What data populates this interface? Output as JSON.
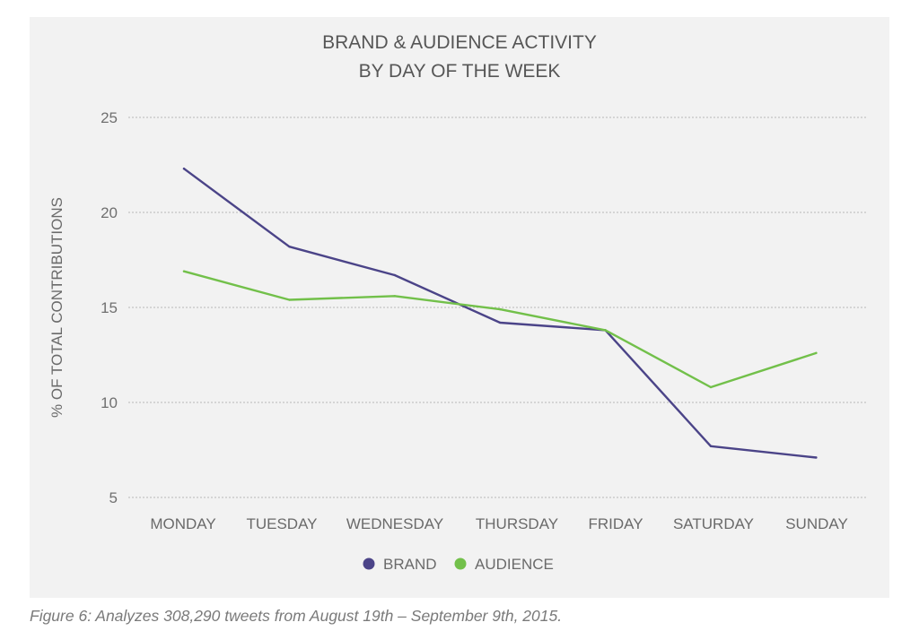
{
  "chart_data": {
    "type": "line",
    "title": [
      "BRAND & AUDIENCE ACTIVITY",
      "BY DAY OF THE WEEK"
    ],
    "xlabel": "",
    "ylabel": "% OF TOTAL CONTRIBUTIONS",
    "categories": [
      "MONDAY",
      "TUESDAY",
      "WEDNESDAY",
      "THURSDAY",
      "FRIDAY",
      "SATURDAY",
      "SUNDAY"
    ],
    "series": [
      {
        "name": "BRAND",
        "color": "#4b4488",
        "values": [
          22.3,
          18.2,
          16.7,
          14.2,
          13.8,
          7.7,
          7.1
        ]
      },
      {
        "name": "AUDIENCE",
        "color": "#72c04a",
        "values": [
          16.9,
          15.4,
          15.6,
          14.9,
          13.8,
          10.8,
          12.6
        ]
      }
    ],
    "yticks": [
      5,
      10,
      15,
      20,
      25
    ],
    "ylim": [
      5,
      25
    ],
    "grid": true,
    "legend": "bottom-center"
  },
  "caption": "Figure 6: Analyzes 308,290 tweets from August 19th – September 9th, 2015."
}
